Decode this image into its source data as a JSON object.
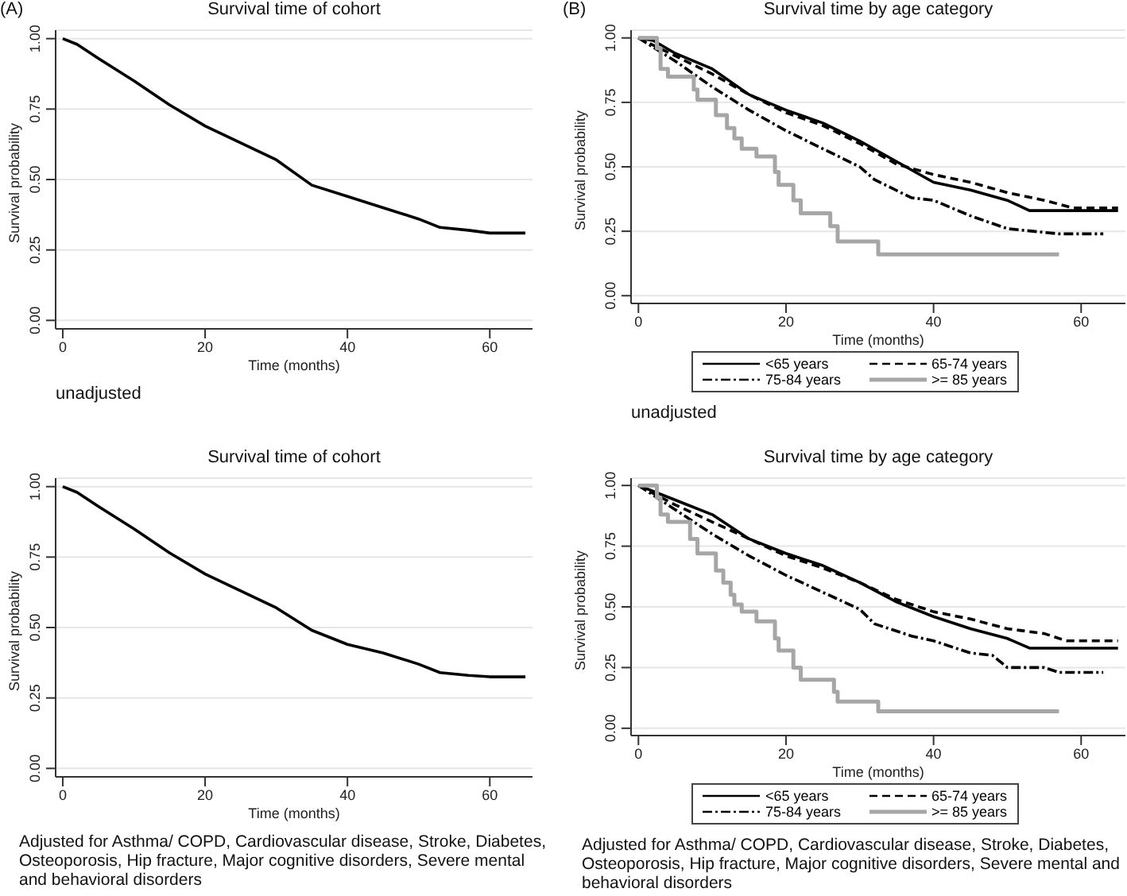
{
  "chart_data": [
    {
      "type": "line",
      "title": "Survival time of cohort",
      "xlabel": "Time (months)",
      "ylabel": "Survival probability",
      "annotations": [
        "(A)",
        "unadjusted"
      ],
      "xlim": [
        -1,
        66
      ],
      "ylim": [
        -0.03,
        1.03
      ],
      "xticks": [
        0,
        20,
        40,
        60
      ],
      "yticks": [
        {
          "value": 0,
          "label": "0.00"
        },
        {
          "value": 0.25,
          "label": "0.25"
        },
        {
          "value": 0.5,
          "label": "0.50"
        },
        {
          "value": 0.75,
          "label": "0.75"
        },
        {
          "value": 1,
          "label": "1.00"
        }
      ],
      "grid": "y",
      "series": [
        {
          "color": "#000000",
          "line_style": "solid",
          "x": [
            0,
            2,
            5,
            10,
            15,
            20,
            25,
            30,
            35,
            40,
            45,
            50,
            53,
            57,
            60,
            65
          ],
          "values": [
            1.0,
            0.98,
            0.93,
            0.85,
            0.765,
            0.69,
            0.63,
            0.57,
            0.48,
            0.44,
            0.4,
            0.36,
            0.33,
            0.32,
            0.31,
            0.31
          ]
        }
      ]
    },
    {
      "type": "line",
      "title": "Survival time by age category",
      "xlabel": "Time (months)",
      "ylabel": "Survival probability",
      "annotations": [
        "(B)",
        "unadjusted"
      ],
      "xlim": [
        -1,
        66
      ],
      "ylim": [
        -0.03,
        1.03
      ],
      "xticks": [
        0,
        20,
        40,
        60
      ],
      "yticks": [
        {
          "value": 0,
          "label": "0.00"
        },
        {
          "value": 0.25,
          "label": "0.25"
        },
        {
          "value": 0.5,
          "label": "0.50"
        },
        {
          "value": 0.75,
          "label": "0.75"
        },
        {
          "value": 1,
          "label": "1.00"
        }
      ],
      "grid": "y",
      "legend": "bottom",
      "series": [
        {
          "name": "<65 years",
          "color": "#000000",
          "line_style": "solid",
          "x": [
            0,
            2,
            5,
            10,
            15,
            20,
            25,
            30,
            35,
            40,
            45,
            50,
            53,
            65
          ],
          "values": [
            1.0,
            0.99,
            0.94,
            0.88,
            0.78,
            0.72,
            0.67,
            0.6,
            0.52,
            0.44,
            0.41,
            0.37,
            0.33,
            0.33
          ]
        },
        {
          "name": "65-74 years",
          "color": "#000000",
          "line_style": "dashed",
          "x": [
            0,
            5,
            10,
            15,
            20,
            25,
            30,
            35,
            40,
            45,
            50,
            55,
            59,
            65
          ],
          "values": [
            1.0,
            0.93,
            0.86,
            0.78,
            0.71,
            0.66,
            0.59,
            0.51,
            0.47,
            0.44,
            0.4,
            0.37,
            0.34,
            0.34
          ]
        },
        {
          "name": "75-84 years",
          "color": "#000000",
          "line_style": "dotted",
          "x": [
            0,
            5,
            10,
            15,
            20,
            25,
            30,
            32,
            37,
            40,
            45,
            50,
            57,
            63
          ],
          "values": [
            1.0,
            0.91,
            0.81,
            0.72,
            0.64,
            0.57,
            0.5,
            0.45,
            0.38,
            0.37,
            0.31,
            0.26,
            0.24,
            0.24
          ]
        },
        {
          "name": ">= 85 years",
          "type": "step",
          "color": "#a6a6a6",
          "line_style": "solid",
          "x": [
            0,
            2.5,
            3,
            4,
            7.5,
            8,
            10.5,
            12,
            13,
            14,
            16,
            18.5,
            19,
            21,
            22,
            26,
            27,
            32.5,
            57
          ],
          "values": [
            1.0,
            0.96,
            0.88,
            0.85,
            0.8,
            0.76,
            0.7,
            0.65,
            0.61,
            0.57,
            0.54,
            0.48,
            0.43,
            0.37,
            0.32,
            0.27,
            0.21,
            0.16,
            0.16
          ]
        }
      ]
    },
    {
      "type": "line",
      "title": "Survival time of cohort",
      "xlabel": "Time (months)",
      "ylabel": "Survival probability",
      "annotations": [
        "Adjusted for Asthma/ COPD, Cardiovascular disease, Stroke, Diabetes, Osteoporosis, Hip fracture, Major cognitive disorders, Severe mental and behavioral disorders"
      ],
      "xlim": [
        -1,
        66
      ],
      "ylim": [
        -0.03,
        1.03
      ],
      "xticks": [
        0,
        20,
        40,
        60
      ],
      "yticks": [
        {
          "value": 0,
          "label": "0.00"
        },
        {
          "value": 0.25,
          "label": "0.25"
        },
        {
          "value": 0.5,
          "label": "0.50"
        },
        {
          "value": 0.75,
          "label": "0.75"
        },
        {
          "value": 1,
          "label": "1.00"
        }
      ],
      "grid": "y",
      "series": [
        {
          "color": "#000000",
          "line_style": "solid",
          "x": [
            0,
            2,
            5,
            10,
            15,
            20,
            25,
            30,
            35,
            40,
            45,
            50,
            53,
            57,
            60,
            65
          ],
          "values": [
            1.0,
            0.98,
            0.93,
            0.85,
            0.765,
            0.69,
            0.63,
            0.57,
            0.49,
            0.44,
            0.41,
            0.37,
            0.34,
            0.33,
            0.325,
            0.325
          ]
        }
      ]
    },
    {
      "type": "line",
      "title": "Survival time by age category",
      "xlabel": "Time (months)",
      "ylabel": "Survival probability",
      "annotations": [
        "Adjusted for Asthma/ COPD, Cardiovascular disease, Stroke, Diabetes, Osteoporosis, Hip fracture, Major cognitive disorders, Severe mental and behavioral disorders"
      ],
      "xlim": [
        -1,
        66
      ],
      "ylim": [
        -0.03,
        1.03
      ],
      "xticks": [
        0,
        20,
        40,
        60
      ],
      "yticks": [
        {
          "value": 0,
          "label": "0.00"
        },
        {
          "value": 0.25,
          "label": "0.25"
        },
        {
          "value": 0.5,
          "label": "0.50"
        },
        {
          "value": 0.75,
          "label": "0.75"
        },
        {
          "value": 1,
          "label": "1.00"
        }
      ],
      "grid": "y",
      "legend": "bottom",
      "series": [
        {
          "name": "<65 years",
          "color": "#000000",
          "line_style": "solid",
          "x": [
            0,
            5,
            10,
            15,
            20,
            25,
            30,
            35,
            40,
            45,
            50,
            53,
            65
          ],
          "values": [
            1.0,
            0.94,
            0.88,
            0.78,
            0.72,
            0.67,
            0.6,
            0.52,
            0.46,
            0.41,
            0.37,
            0.33,
            0.33
          ]
        },
        {
          "name": "65-74 years",
          "color": "#000000",
          "line_style": "dashed",
          "x": [
            0,
            5,
            10,
            15,
            20,
            25,
            30,
            35,
            40,
            45,
            50,
            55,
            58,
            65
          ],
          "values": [
            1.0,
            0.92,
            0.85,
            0.78,
            0.71,
            0.66,
            0.6,
            0.53,
            0.48,
            0.45,
            0.41,
            0.39,
            0.36,
            0.36
          ]
        },
        {
          "name": "75-84 years",
          "color": "#000000",
          "line_style": "dotted",
          "x": [
            0,
            5,
            10,
            15,
            20,
            25,
            30,
            32,
            37,
            40,
            45,
            48,
            50,
            55,
            57,
            63
          ],
          "values": [
            1.0,
            0.9,
            0.8,
            0.71,
            0.63,
            0.56,
            0.49,
            0.43,
            0.38,
            0.36,
            0.31,
            0.3,
            0.25,
            0.25,
            0.23,
            0.23
          ]
        },
        {
          "name": ">= 85 years",
          "type": "step",
          "color": "#a6a6a6",
          "line_style": "solid",
          "x": [
            0,
            2.5,
            3,
            4,
            7,
            8,
            10.5,
            11.5,
            12.5,
            13,
            14,
            16,
            18.5,
            19,
            21,
            22,
            26.5,
            27,
            32.5,
            57
          ],
          "values": [
            1.0,
            0.95,
            0.88,
            0.85,
            0.78,
            0.72,
            0.65,
            0.6,
            0.55,
            0.51,
            0.48,
            0.44,
            0.37,
            0.32,
            0.25,
            0.2,
            0.15,
            0.11,
            0.07,
            0.07
          ]
        }
      ]
    }
  ]
}
